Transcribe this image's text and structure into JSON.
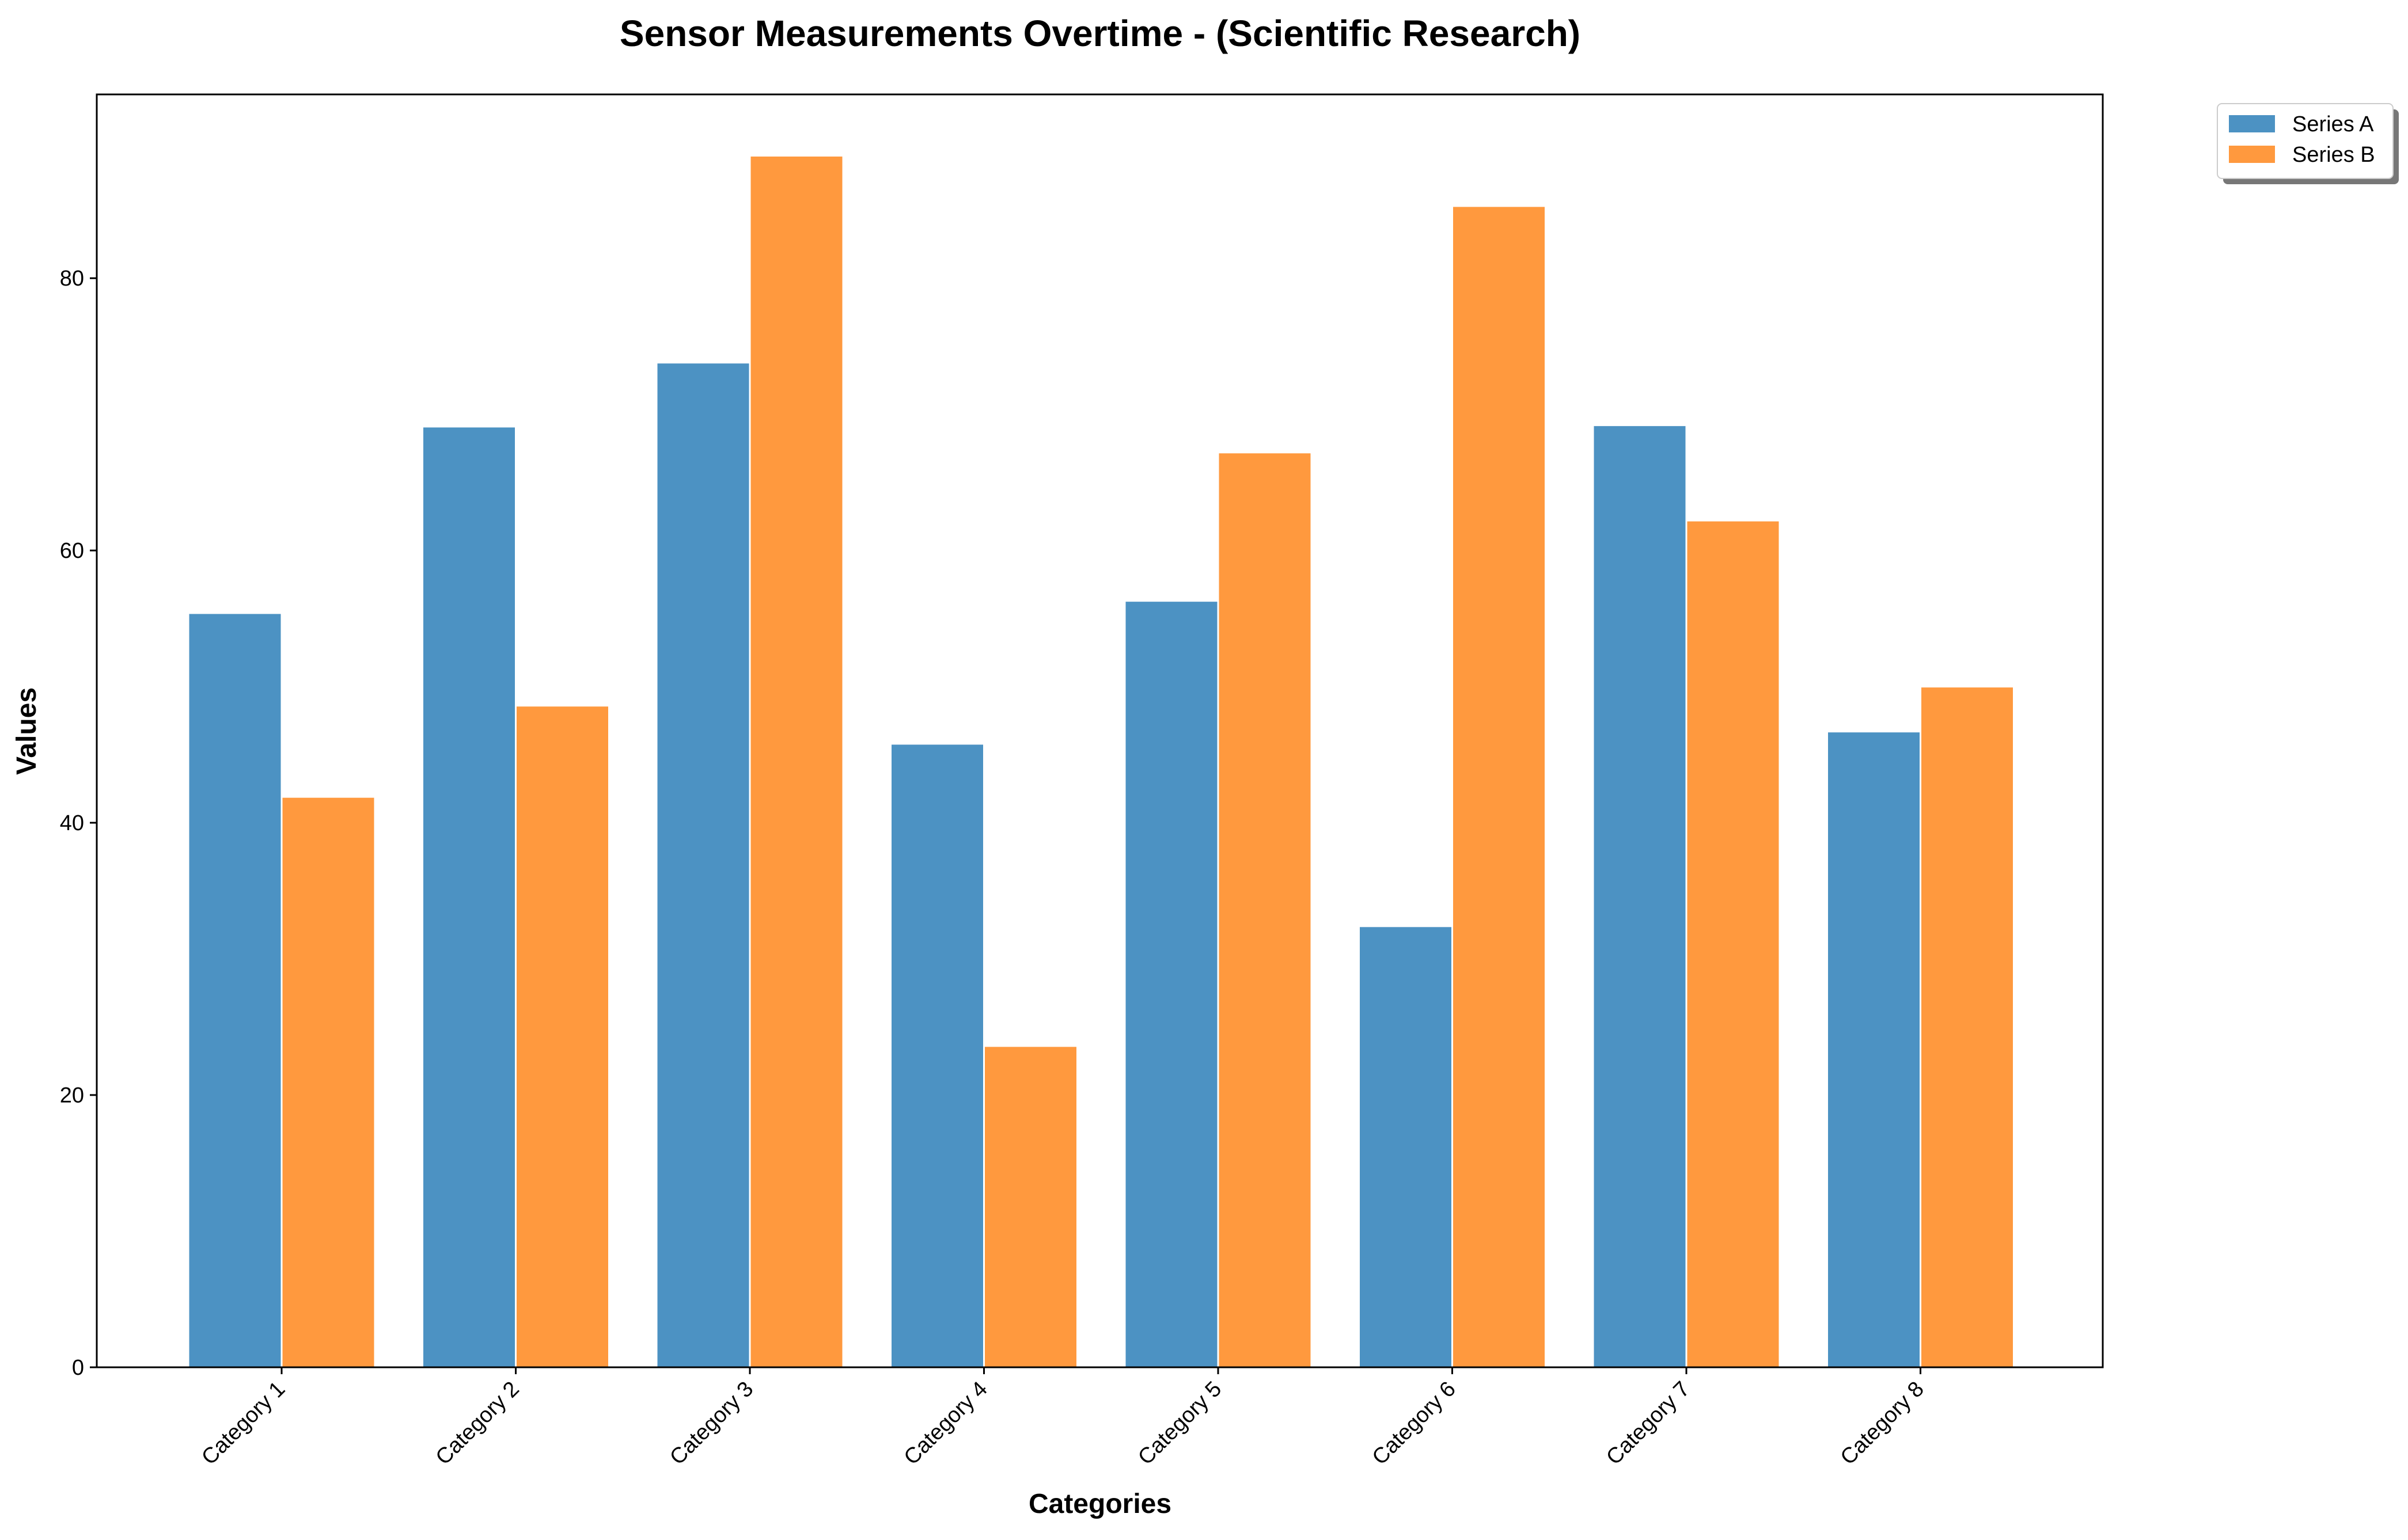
{
  "chart_data": {
    "type": "bar",
    "title": "Sensor Measurements Overtime - (Scientific Research)",
    "xlabel": "Categories",
    "ylabel": "Values",
    "categories": [
      "Category 1",
      "Category 2",
      "Category 3",
      "Category 4",
      "Category 5",
      "Category 6",
      "Category 7",
      "Category 8"
    ],
    "series": [
      {
        "name": "Series A",
        "color": "#4c92c3",
        "values": [
          55.4,
          69.1,
          73.8,
          45.8,
          56.3,
          32.4,
          69.2,
          46.7
        ]
      },
      {
        "name": "Series B",
        "color": "#ff993e",
        "values": [
          41.9,
          48.6,
          89.0,
          23.6,
          67.2,
          85.3,
          62.2,
          50.0
        ]
      }
    ],
    "ylim": [
      0,
      93.5
    ],
    "yticks": [
      0,
      20,
      40,
      60,
      80
    ],
    "grid": false,
    "legend_position": "outside-top-right"
  }
}
